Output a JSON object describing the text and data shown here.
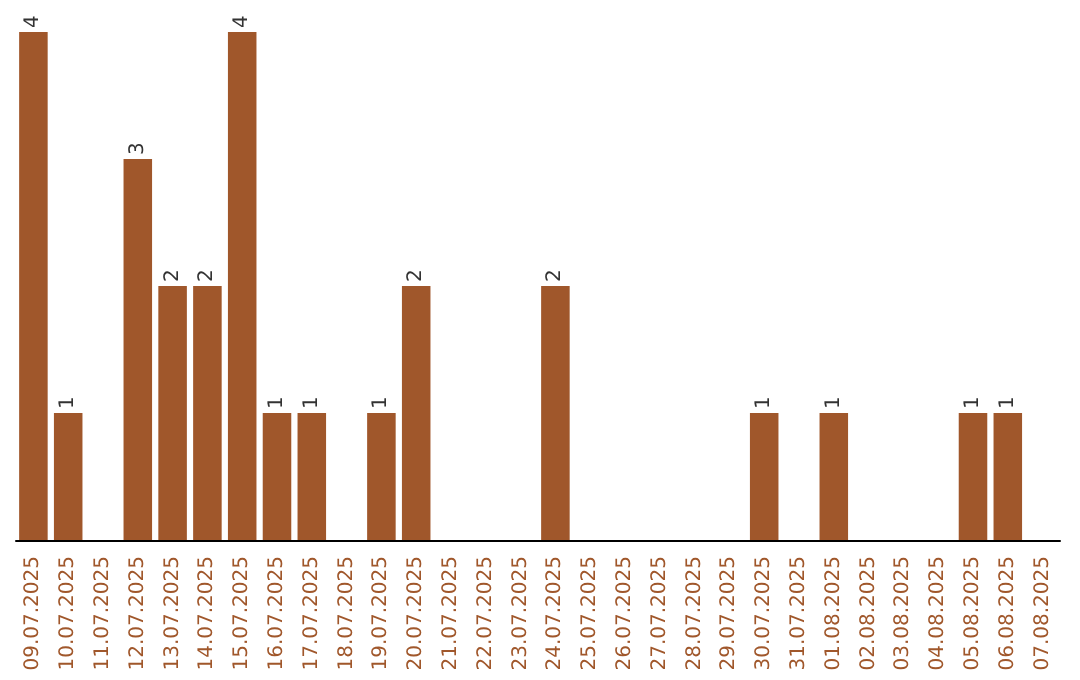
{
  "chart_data": {
    "type": "bar",
    "categories": [
      "09.07.2025",
      "10.07.2025",
      "11.07.2025",
      "12.07.2025",
      "13.07.2025",
      "14.07.2025",
      "15.07.2025",
      "16.07.2025",
      "17.07.2025",
      "18.07.2025",
      "19.07.2025",
      "20.07.2025",
      "21.07.2025",
      "22.07.2025",
      "23.07.2025",
      "24.07.2025",
      "25.07.2025",
      "26.07.2025",
      "27.07.2025",
      "28.07.2025",
      "29.07.2025",
      "30.07.2025",
      "31.07.2025",
      "01.08.2025",
      "02.08.2025",
      "03.08.2025",
      "04.08.2025",
      "05.08.2025",
      "06.08.2025",
      "07.08.2025"
    ],
    "values": [
      4,
      1,
      0,
      3,
      2,
      2,
      4,
      1,
      1,
      0,
      1,
      2,
      0,
      0,
      0,
      2,
      0,
      0,
      0,
      0,
      0,
      1,
      0,
      1,
      0,
      0,
      0,
      1,
      1,
      0
    ],
    "value_labels": [
      "4",
      "1",
      null,
      "3",
      "2",
      "2",
      "4",
      "1",
      "1",
      null,
      "1",
      "2",
      null,
      null,
      null,
      "2",
      null,
      null,
      null,
      null,
      null,
      "1",
      null,
      "1",
      null,
      null,
      null,
      "1",
      "1",
      null
    ],
    "color": "#a0572b"
  }
}
